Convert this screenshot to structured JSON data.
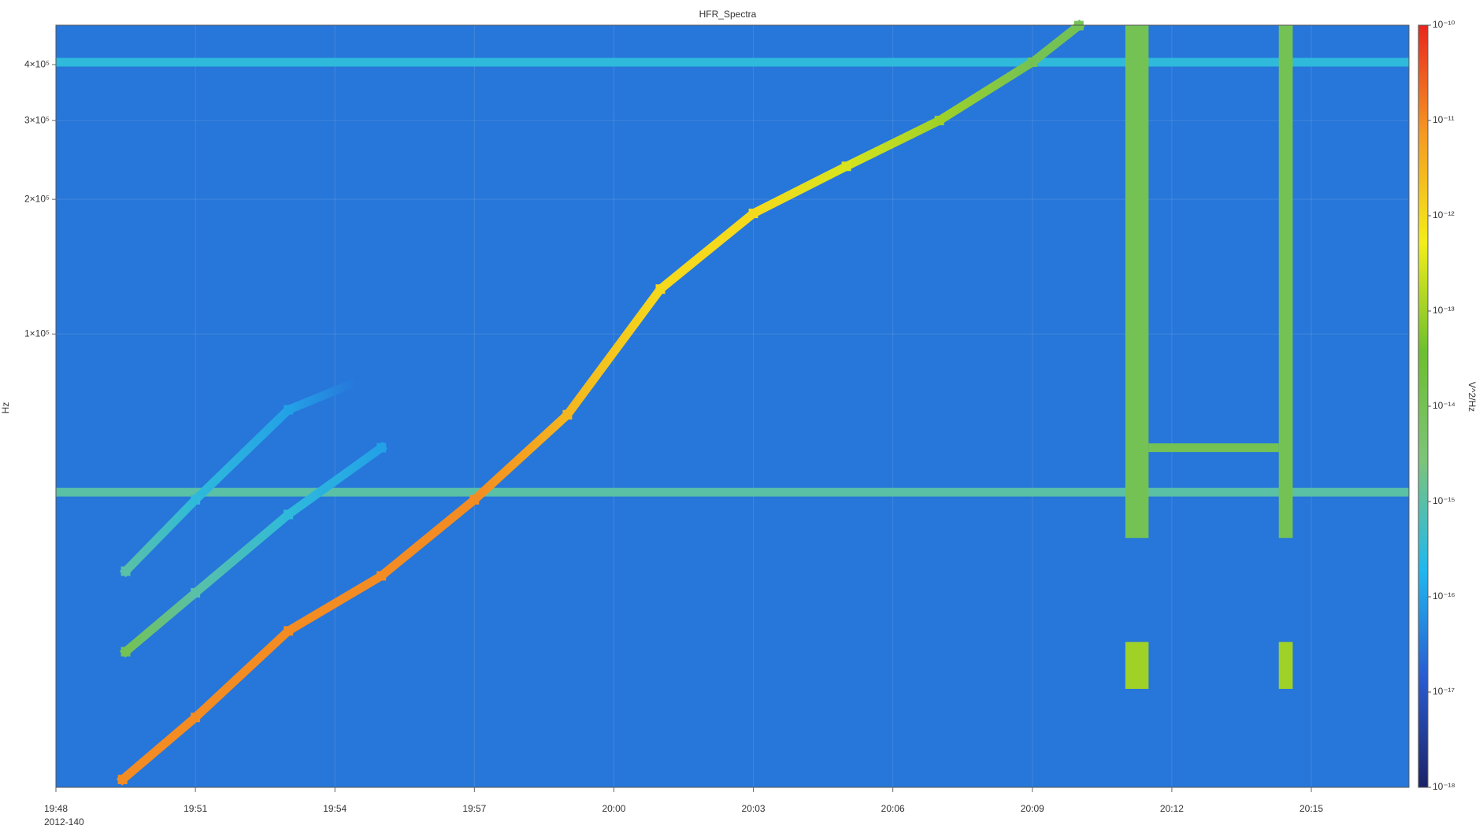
{
  "chart_data": {
    "type": "spectrogram",
    "title": "HFR_Spectra",
    "y_label": "Hz",
    "x_date_label": "2012-140",
    "colorbar_label": "V^2/Hz",
    "yscale": "log",
    "ylim": [
      9700,
      490000
    ],
    "yticks": [
      {
        "value": 100000,
        "label": "1×10⁵"
      },
      {
        "value": 200000,
        "label": "2×10⁵"
      },
      {
        "value": 300000,
        "label": "3×10⁵"
      },
      {
        "value": 400000,
        "label": "4×10⁵"
      }
    ],
    "xlim": [
      "19:48:00",
      "20:17:06"
    ],
    "xticks": [
      "19:48",
      "19:51",
      "19:54",
      "19:57",
      "20:00",
      "20:03",
      "20:06",
      "20:09",
      "20:12",
      "20:15"
    ],
    "grid": true,
    "clim": [
      1e-18,
      1e-10
    ],
    "cticks": [
      {
        "value": 1e-18,
        "label": "10⁻¹⁸"
      },
      {
        "value": 1e-17,
        "label": "10⁻¹⁷"
      },
      {
        "value": 1e-16,
        "label": "10⁻¹⁶"
      },
      {
        "value": 1e-15,
        "label": "10⁻¹⁵"
      },
      {
        "value": 1e-14,
        "label": "10⁻¹⁴"
      },
      {
        "value": 1e-13,
        "label": "10⁻¹³"
      },
      {
        "value": 1e-12,
        "label": "10⁻¹²"
      },
      {
        "value": 1e-11,
        "label": "10⁻¹¹"
      },
      {
        "value": 1e-10,
        "label": "10⁻¹⁰"
      }
    ],
    "colormap": [
      "#1b2366",
      "#2a5bd0",
      "#20b8ee",
      "#7cc47a",
      "#6cbf2e",
      "#f3ee1a",
      "#f59a22",
      "#e8261e"
    ],
    "background_level": 3e-17,
    "series": [
      {
        "x": [
          "19:49:26",
          "19:51:00",
          "19:53:00",
          "19:55:00",
          "19:57:00",
          "19:59:00",
          "20:01:00",
          "20:03:00",
          "20:05:00",
          "20:07:00",
          "20:09:00",
          "20:10:00"
        ],
        "values": [
          10100,
          13900,
          21700,
          28800,
          42600,
          66000,
          126000,
          186000,
          237000,
          300000,
          405000,
          489000
        ],
        "levels": [
          1e-11,
          1e-11,
          1e-11,
          1e-11,
          1e-11,
          3e-12,
          1e-12,
          1e-12,
          3e-13,
          1e-13,
          1e-14,
          1e-14
        ]
      },
      {
        "x": [
          "19:49:30",
          "19:51:00",
          "19:53:00",
          "19:55:00"
        ],
        "values": [
          19500,
          26400,
          39500,
          55700
        ],
        "levels": [
          1e-14,
          1e-15,
          3e-16,
          1e-16
        ]
      },
      {
        "x": [
          "19:49:30",
          "19:51:00",
          "19:53:00",
          "19:54:30"
        ],
        "values": [
          29500,
          42600,
          67700,
          78400
        ],
        "levels": [
          1e-15,
          3e-16,
          1e-16,
          3e-17
        ]
      }
    ],
    "bands": [
      {
        "hz": 405000,
        "level": 3e-16
      },
      {
        "hz": 44300,
        "level": 1e-15
      }
    ],
    "tones": [
      {
        "start": "20:11:30",
        "end": "20:14:18",
        "hz": 55700,
        "level": 1e-14
      }
    ],
    "bursts": [
      {
        "start": "20:11:00",
        "end": "20:11:30",
        "hz": [
          35000,
          489000
        ],
        "level": 1e-14
      },
      {
        "start": "20:11:00",
        "end": "20:11:30",
        "hz": [
          16100,
          20500
        ],
        "level": 1e-13
      },
      {
        "start": "20:14:18",
        "end": "20:14:36",
        "hz": [
          35000,
          489000
        ],
        "level": 1e-14
      },
      {
        "start": "20:14:18",
        "end": "20:14:36",
        "hz": [
          16100,
          20500
        ],
        "level": 1e-13
      }
    ]
  }
}
